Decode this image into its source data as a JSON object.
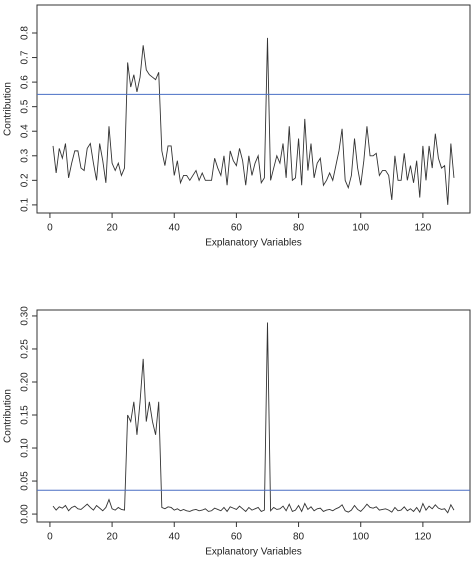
{
  "chart_data": [
    {
      "type": "line",
      "xlabel": "Explanatory Variables",
      "ylabel": "Contribution",
      "x": [
        1,
        2,
        3,
        4,
        5,
        6,
        7,
        8,
        9,
        10,
        11,
        12,
        13,
        14,
        15,
        16,
        17,
        18,
        19,
        20,
        21,
        22,
        23,
        24,
        25,
        26,
        27,
        28,
        29,
        30,
        31,
        32,
        33,
        34,
        35,
        36,
        37,
        38,
        39,
        40,
        41,
        42,
        43,
        44,
        45,
        46,
        47,
        48,
        49,
        50,
        51,
        52,
        53,
        54,
        55,
        56,
        57,
        58,
        59,
        60,
        61,
        62,
        63,
        64,
        65,
        66,
        67,
        68,
        69,
        70,
        71,
        72,
        73,
        74,
        75,
        76,
        77,
        78,
        79,
        80,
        81,
        82,
        83,
        84,
        85,
        86,
        87,
        88,
        89,
        90,
        91,
        92,
        93,
        94,
        95,
        96,
        97,
        98,
        99,
        100,
        101,
        102,
        103,
        104,
        105,
        106,
        107,
        108,
        109,
        110,
        111,
        112,
        113,
        114,
        115,
        116,
        117,
        118,
        119,
        120,
        121,
        122,
        123,
        124,
        125,
        126,
        127,
        128,
        129,
        130
      ],
      "series": [
        {
          "color": "#333333",
          "values": [
            0.34,
            0.23,
            0.33,
            0.29,
            0.35,
            0.21,
            0.27,
            0.32,
            0.32,
            0.25,
            0.24,
            0.33,
            0.35,
            0.27,
            0.2,
            0.35,
            0.28,
            0.19,
            0.42,
            0.27,
            0.24,
            0.27,
            0.22,
            0.25,
            0.68,
            0.58,
            0.63,
            0.56,
            0.62,
            0.75,
            0.65,
            0.63,
            0.62,
            0.61,
            0.64,
            0.32,
            0.26,
            0.34,
            0.34,
            0.22,
            0.28,
            0.19,
            0.22,
            0.22,
            0.2,
            0.22,
            0.24,
            0.2,
            0.23,
            0.2,
            0.2,
            0.2,
            0.29,
            0.25,
            0.22,
            0.3,
            0.18,
            0.32,
            0.28,
            0.26,
            0.33,
            0.28,
            0.18,
            0.3,
            0.22,
            0.27,
            0.3,
            0.19,
            0.21,
            0.78,
            0.2,
            0.25,
            0.3,
            0.27,
            0.35,
            0.21,
            0.42,
            0.2,
            0.21,
            0.37,
            0.18,
            0.45,
            0.24,
            0.35,
            0.21,
            0.27,
            0.29,
            0.18,
            0.2,
            0.23,
            0.2,
            0.26,
            0.32,
            0.41,
            0.2,
            0.17,
            0.22,
            0.37,
            0.25,
            0.18,
            0.28,
            0.42,
            0.3,
            0.3,
            0.31,
            0.22,
            0.24,
            0.24,
            0.22,
            0.12,
            0.3,
            0.2,
            0.2,
            0.31,
            0.2,
            0.26,
            0.19,
            0.28,
            0.13,
            0.34,
            0.2,
            0.34,
            0.25,
            0.39,
            0.29,
            0.25,
            0.26,
            0.1,
            0.35,
            0.21
          ]
        }
      ],
      "hline": {
        "value": 0.55,
        "color": "#4a6fc4"
      },
      "xlim": [
        -4.16,
        135.16
      ],
      "ylim": [
        0.067,
        0.914
      ],
      "xticks": [
        0,
        20,
        40,
        60,
        80,
        100,
        120
      ],
      "yticks": [
        0.1,
        0.2,
        0.3,
        0.4,
        0.5,
        0.6,
        0.7,
        0.8
      ]
    },
    {
      "type": "line",
      "xlabel": "Explanatory Variables",
      "ylabel": "Contribution",
      "x": [
        1,
        2,
        3,
        4,
        5,
        6,
        7,
        8,
        9,
        10,
        11,
        12,
        13,
        14,
        15,
        16,
        17,
        18,
        19,
        20,
        21,
        22,
        23,
        24,
        25,
        26,
        27,
        28,
        29,
        30,
        31,
        32,
        33,
        34,
        35,
        36,
        37,
        38,
        39,
        40,
        41,
        42,
        43,
        44,
        45,
        46,
        47,
        48,
        49,
        50,
        51,
        52,
        53,
        54,
        55,
        56,
        57,
        58,
        59,
        60,
        61,
        62,
        63,
        64,
        65,
        66,
        67,
        68,
        69,
        70,
        71,
        72,
        73,
        74,
        75,
        76,
        77,
        78,
        79,
        80,
        81,
        82,
        83,
        84,
        85,
        86,
        87,
        88,
        89,
        90,
        91,
        92,
        93,
        94,
        95,
        96,
        97,
        98,
        99,
        100,
        101,
        102,
        103,
        104,
        105,
        106,
        107,
        108,
        109,
        110,
        111,
        112,
        113,
        114,
        115,
        116,
        117,
        118,
        119,
        120,
        121,
        122,
        123,
        124,
        125,
        126,
        127,
        128,
        129,
        130
      ],
      "series": [
        {
          "color": "#333333",
          "values": [
            0.012,
            0.006,
            0.011,
            0.009,
            0.013,
            0.005,
            0.01,
            0.012,
            0.008,
            0.007,
            0.011,
            0.015,
            0.01,
            0.006,
            0.013,
            0.009,
            0.005,
            0.01,
            0.022,
            0.008,
            0.006,
            0.01,
            0.007,
            0.006,
            0.15,
            0.14,
            0.17,
            0.12,
            0.17,
            0.235,
            0.14,
            0.17,
            0.14,
            0.12,
            0.17,
            0.01,
            0.008,
            0.011,
            0.01,
            0.006,
            0.008,
            0.005,
            0.007,
            0.005,
            0.004,
            0.006,
            0.007,
            0.005,
            0.006,
            0.008,
            0.004,
            0.005,
            0.009,
            0.007,
            0.005,
            0.01,
            0.004,
            0.011,
            0.009,
            0.007,
            0.012,
            0.008,
            0.004,
            0.01,
            0.006,
            0.008,
            0.01,
            0.004,
            0.006,
            0.29,
            0.005,
            0.01,
            0.007,
            0.008,
            0.012,
            0.005,
            0.015,
            0.004,
            0.006,
            0.013,
            0.004,
            0.016,
            0.007,
            0.011,
            0.005,
            0.008,
            0.009,
            0.004,
            0.006,
            0.007,
            0.005,
            0.008,
            0.01,
            0.014,
            0.005,
            0.003,
            0.006,
            0.013,
            0.007,
            0.004,
            0.009,
            0.015,
            0.01,
            0.009,
            0.011,
            0.006,
            0.007,
            0.008,
            0.006,
            0.003,
            0.01,
            0.005,
            0.006,
            0.011,
            0.005,
            0.008,
            0.004,
            0.01,
            0.003,
            0.016,
            0.006,
            0.012,
            0.008,
            0.014,
            0.009,
            0.007,
            0.008,
            0.002,
            0.014,
            0.006
          ]
        }
      ],
      "hline": {
        "value": 0.036,
        "color": "#4a6fc4"
      },
      "xlim": [
        -4.16,
        135.16
      ],
      "ylim": [
        -0.012,
        0.309
      ],
      "xticks": [
        0,
        20,
        40,
        60,
        80,
        100,
        120
      ],
      "yticks": [
        {
          "value": 0,
          "label": "0.00"
        },
        {
          "value": 0.05,
          "label": "0.05"
        },
        {
          "value": 0.1,
          "label": "0.10"
        },
        {
          "value": 0.15,
          "label": "0.15"
        },
        {
          "value": 0.2,
          "label": "0.20"
        },
        {
          "value": 0.25,
          "label": "0.25"
        },
        {
          "value": 0.3,
          "label": "0.30"
        }
      ]
    }
  ]
}
